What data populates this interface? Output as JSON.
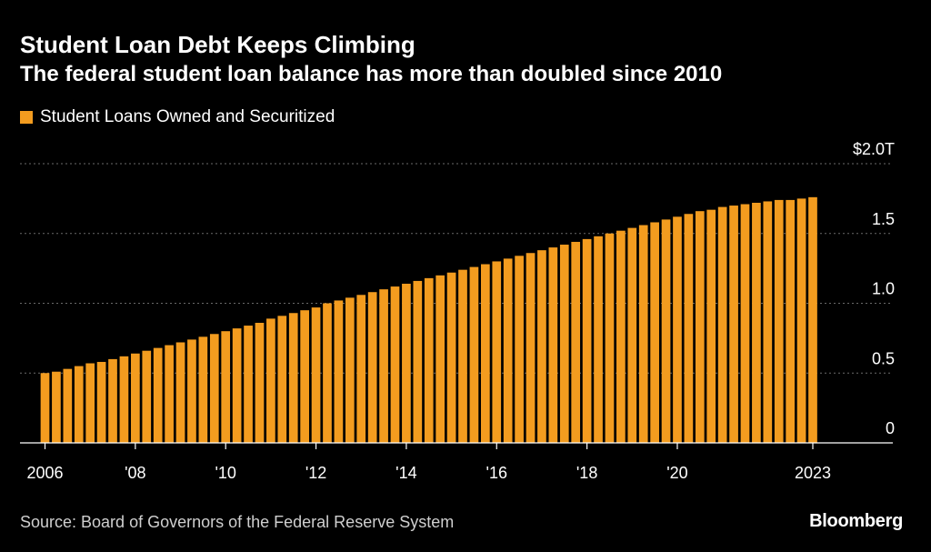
{
  "header": {
    "title": "Student Loan Debt Keeps Climbing",
    "subtitle": "The federal student loan balance has more than doubled since 2010"
  },
  "legend": {
    "label": "Student Loans Owned and Securitized"
  },
  "footer": {
    "source": "Source: Board of Governors of the Federal Reserve System",
    "brand": "Bloomberg"
  },
  "colors": {
    "background": "#000000",
    "bar": "#f39c1f",
    "grid": "#6a6a6a",
    "axis": "#ffffff",
    "text": "#ffffff"
  },
  "chart_data": {
    "type": "bar",
    "title": "Student Loan Debt Keeps Climbing",
    "series_name": "Student Loans Owned and Securitized",
    "unit": "trillion USD",
    "frequency": "quarterly",
    "start": "2006 Q1",
    "end": "2023 Q1",
    "ylim": [
      0,
      2.0
    ],
    "y_ticks": [
      {
        "value": 0,
        "label": "0"
      },
      {
        "value": 0.5,
        "label": "0.5"
      },
      {
        "value": 1.0,
        "label": "1.0"
      },
      {
        "value": 1.5,
        "label": "1.5"
      },
      {
        "value": 2.0,
        "label": "$2.0T"
      }
    ],
    "x_ticks": [
      {
        "index": 0,
        "label": "2006"
      },
      {
        "index": 8,
        "label": "'08"
      },
      {
        "index": 16,
        "label": "'10"
      },
      {
        "index": 24,
        "label": "'12"
      },
      {
        "index": 32,
        "label": "'14"
      },
      {
        "index": 40,
        "label": "'16"
      },
      {
        "index": 48,
        "label": "'18"
      },
      {
        "index": 56,
        "label": "'20"
      },
      {
        "index": 68,
        "label": "2023"
      }
    ],
    "values": [
      0.5,
      0.51,
      0.53,
      0.55,
      0.57,
      0.58,
      0.6,
      0.62,
      0.64,
      0.66,
      0.68,
      0.7,
      0.72,
      0.74,
      0.76,
      0.78,
      0.8,
      0.82,
      0.84,
      0.86,
      0.89,
      0.91,
      0.93,
      0.95,
      0.97,
      1.0,
      1.02,
      1.04,
      1.06,
      1.08,
      1.1,
      1.12,
      1.14,
      1.16,
      1.18,
      1.2,
      1.22,
      1.24,
      1.26,
      1.28,
      1.3,
      1.32,
      1.34,
      1.36,
      1.38,
      1.4,
      1.42,
      1.44,
      1.46,
      1.48,
      1.5,
      1.52,
      1.54,
      1.56,
      1.58,
      1.6,
      1.62,
      1.64,
      1.66,
      1.67,
      1.69,
      1.7,
      1.71,
      1.72,
      1.73,
      1.74,
      1.74,
      1.75,
      1.76
    ]
  }
}
